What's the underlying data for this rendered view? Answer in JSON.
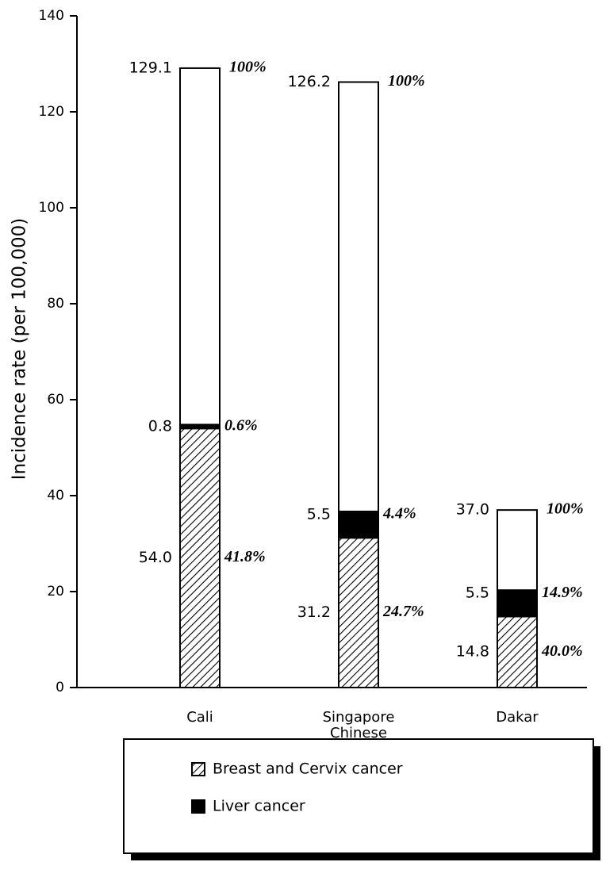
{
  "chart_data": {
    "type": "bar",
    "ylabel": "Incidence rate (per 100,000)",
    "ylim": [
      0,
      140
    ],
    "yticks": [
      0,
      20,
      40,
      60,
      80,
      100,
      120,
      140
    ],
    "categories": [
      "Cali",
      "Singapore Chinese",
      "Dakar"
    ],
    "series": [
      {
        "name": "Breast and Cervix cancer",
        "pattern": "hatch",
        "color": "#000000",
        "values": [
          54.0,
          31.2,
          14.8
        ],
        "value_labels": [
          "54.0",
          "31.2",
          "14.8"
        ],
        "percent_labels": [
          "41.8%",
          "24.7%",
          "40.0%"
        ]
      },
      {
        "name": "Liver cancer",
        "color": "#000000",
        "values": [
          0.8,
          5.5,
          5.5
        ],
        "value_labels": [
          "0.8",
          "5.5",
          "5.5"
        ],
        "percent_labels": [
          "0.6%",
          "4.4%",
          "14.9%"
        ]
      }
    ],
    "totals": {
      "color": "#ffffff",
      "values": [
        129.1,
        126.2,
        37.0
      ],
      "value_labels": [
        "129.1",
        "126.2",
        "37.0"
      ],
      "percent_labels": [
        "100%",
        "100%",
        "100%"
      ]
    }
  }
}
